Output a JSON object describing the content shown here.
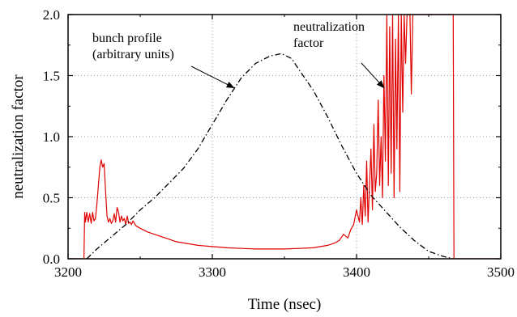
{
  "chart_data": {
    "type": "line",
    "title": "",
    "xlabel": "Time (nsec)",
    "ylabel": "neutralization factor",
    "xlim": [
      3200,
      3500
    ],
    "ylim": [
      0,
      2.0
    ],
    "x_ticks": [
      3200,
      3300,
      3400,
      3500
    ],
    "x_tick_labels": [
      "3200",
      "3300",
      "3400",
      "3500"
    ],
    "y_ticks": [
      0.0,
      0.5,
      1.0,
      1.5,
      2.0
    ],
    "y_tick_labels": [
      "0.0",
      "0.5",
      "1.0",
      "1.5",
      "2.0"
    ],
    "grid": true,
    "grid_style": "dotted",
    "series": [
      {
        "name": "neutralization factor",
        "color": "#e00000",
        "style": "solid",
        "x": [
          3200,
          3211,
          3211.5,
          3212,
          3213,
          3214,
          3215,
          3216,
          3217,
          3218,
          3219,
          3220,
          3221,
          3222,
          3223,
          3224,
          3225,
          3226,
          3227,
          3228,
          3229,
          3230,
          3231,
          3232,
          3233,
          3234,
          3235,
          3236,
          3237,
          3238,
          3239,
          3240,
          3241,
          3242,
          3243,
          3244,
          3245,
          3247,
          3250,
          3255,
          3260,
          3265,
          3270,
          3275,
          3280,
          3285,
          3290,
          3300,
          3310,
          3320,
          3330,
          3340,
          3350,
          3360,
          3370,
          3375,
          3380,
          3385,
          3388,
          3391,
          3394,
          3396,
          3398,
          3400,
          3402,
          3403,
          3404,
          3405,
          3406,
          3407,
          3408,
          3409,
          3410,
          3411,
          3412,
          3413,
          3414,
          3415,
          3416,
          3417,
          3418,
          3419,
          3420,
          3421,
          3422,
          3423,
          3424,
          3425,
          3426,
          3427,
          3428,
          3429,
          3430,
          3431,
          3432,
          3433,
          3434,
          3435,
          3436,
          3437,
          3438,
          3439,
          3440,
          3467,
          3467.5,
          3500
        ],
        "y": [
          0,
          0,
          0.38,
          0.3,
          0.38,
          0.3,
          0.37,
          0.29,
          0.38,
          0.31,
          0.33,
          0.45,
          0.6,
          0.75,
          0.81,
          0.75,
          0.78,
          0.55,
          0.35,
          0.3,
          0.33,
          0.29,
          0.31,
          0.37,
          0.3,
          0.42,
          0.38,
          0.3,
          0.35,
          0.31,
          0.33,
          0.28,
          0.35,
          0.29,
          0.3,
          0.28,
          0.31,
          0.27,
          0.25,
          0.22,
          0.2,
          0.18,
          0.16,
          0.14,
          0.13,
          0.12,
          0.11,
          0.1,
          0.09,
          0.085,
          0.08,
          0.08,
          0.08,
          0.085,
          0.09,
          0.1,
          0.11,
          0.13,
          0.15,
          0.2,
          0.17,
          0.24,
          0.28,
          0.4,
          0.3,
          0.5,
          0.28,
          0.6,
          0.35,
          0.8,
          0.3,
          0.6,
          0.9,
          0.4,
          1.1,
          0.55,
          0.7,
          1.3,
          0.6,
          1.0,
          0.5,
          1.5,
          0.8,
          2.0,
          0.6,
          1.9,
          0.7,
          2.0,
          0.5,
          1.8,
          0.9,
          2.0,
          0.55,
          2.0,
          1.2,
          2.0,
          1.6,
          2.0,
          2.0,
          2.0,
          1.35,
          2.0,
          2.0,
          2.0,
          0,
          0
        ]
      },
      {
        "name": "bunch profile (arbitrary units)",
        "color": "#000000",
        "style": "dash-dot",
        "x": [
          3213,
          3220,
          3230,
          3240,
          3250,
          3260,
          3270,
          3280,
          3290,
          3300,
          3310,
          3320,
          3330,
          3340,
          3348,
          3355,
          3360,
          3370,
          3380,
          3390,
          3400,
          3410,
          3420,
          3430,
          3440,
          3450,
          3460,
          3467
        ],
        "y": [
          0.0,
          0.08,
          0.18,
          0.28,
          0.4,
          0.5,
          0.62,
          0.74,
          0.9,
          1.1,
          1.3,
          1.48,
          1.6,
          1.66,
          1.68,
          1.64,
          1.55,
          1.38,
          1.16,
          0.92,
          0.7,
          0.52,
          0.39,
          0.26,
          0.15,
          0.06,
          0.02,
          0.0
        ]
      }
    ],
    "annotations": [
      {
        "lines": [
          "bunch profile",
          "(arbitrary units)"
        ],
        "arrow_to": [
          3315,
          1.4
        ]
      },
      {
        "lines": [
          "neutralization",
          "factor"
        ],
        "arrow_to": [
          3419,
          1.4
        ]
      }
    ]
  }
}
